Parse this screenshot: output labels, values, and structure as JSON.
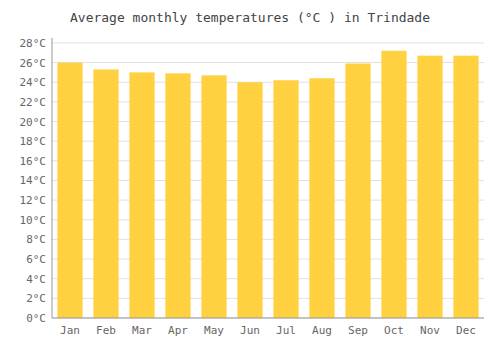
{
  "chart_data": {
    "type": "bar",
    "title": "Average monthly temperatures (°C ) in Trindade",
    "categories": [
      "Jan",
      "Feb",
      "Mar",
      "Apr",
      "May",
      "Jun",
      "Jul",
      "Aug",
      "Sep",
      "Oct",
      "Nov",
      "Dec"
    ],
    "values": [
      26.0,
      25.3,
      25.0,
      24.9,
      24.7,
      24.0,
      24.2,
      24.4,
      25.9,
      27.2,
      26.7,
      26.7
    ],
    "color": "#FFD040",
    "ylim": [
      0,
      28.5
    ],
    "yticks": [
      {
        "value": 0,
        "label": "0°C"
      },
      {
        "value": 2,
        "label": "2°C"
      },
      {
        "value": 4,
        "label": "4°C"
      },
      {
        "value": 6,
        "label": "6°C"
      },
      {
        "value": 8,
        "label": "8°C"
      },
      {
        "value": 10,
        "label": "10°C"
      },
      {
        "value": 12,
        "label": "12°C"
      },
      {
        "value": 14,
        "label": "14°C"
      },
      {
        "value": 16,
        "label": "16°C"
      },
      {
        "value": 18,
        "label": "18°C"
      },
      {
        "value": 20,
        "label": "20°C"
      },
      {
        "value": 22,
        "label": "22°C"
      },
      {
        "value": 24,
        "label": "24°C"
      },
      {
        "value": 26,
        "label": "26°C"
      },
      {
        "value": 28,
        "label": "28°C"
      }
    ],
    "grid": true
  }
}
